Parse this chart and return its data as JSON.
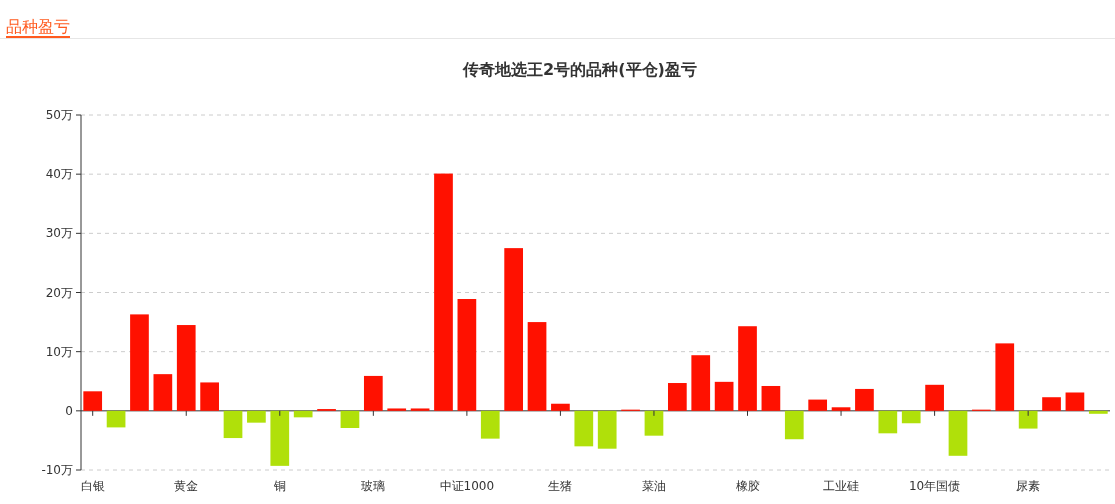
{
  "chart_data": {
    "type": "bar",
    "title": "传奇地选王2号的品种(平仓)盈亏",
    "annotations": [
      "品种盈亏"
    ],
    "categories": [
      "白银",
      null,
      null,
      null,
      "黄金",
      null,
      null,
      null,
      "铜",
      null,
      null,
      null,
      "玻璃",
      null,
      null,
      null,
      "中证1000",
      null,
      null,
      null,
      "生猪",
      null,
      null,
      null,
      "菜油",
      null,
      null,
      null,
      "橡胶",
      null,
      null,
      null,
      "工业硅",
      null,
      null,
      null,
      "10年国债",
      null,
      null,
      null,
      "尿素",
      null,
      null,
      null
    ],
    "values": [
      3.3,
      -2.8,
      16.3,
      6.2,
      14.5,
      4.8,
      -4.6,
      -2.0,
      -9.3,
      -1.1,
      0.3,
      -2.9,
      5.9,
      0.4,
      0.4,
      40.1,
      18.9,
      -4.7,
      27.5,
      15.0,
      1.2,
      -6.0,
      -6.4,
      0.2,
      -4.2,
      4.7,
      9.4,
      4.9,
      14.3,
      4.2,
      -4.8,
      1.9,
      0.6,
      3.7,
      -3.8,
      -2.1,
      4.4,
      -7.6,
      0.2,
      11.4,
      -3.0,
      2.3,
      3.1,
      -0.5
    ],
    "colors": [
      "#ff1100",
      "#b0e00a",
      "#ff1100",
      "#ff1100",
      "#ff1100",
      "#ff1100",
      "#b0e00a",
      "#b0e00a",
      "#b0e00a",
      "#b0e00a",
      "#ff1100",
      "#b0e00a",
      "#ff1100",
      "#ff1100",
      "#ff1100",
      "#ff1100",
      "#ff1100",
      "#b0e00a",
      "#ff1100",
      "#ff1100",
      "#ff1100",
      "#b0e00a",
      "#b0e00a",
      "#ff1100",
      "#b0e00a",
      "#ff1100",
      "#ff1100",
      "#ff1100",
      "#ff1100",
      "#ff1100",
      "#b0e00a",
      "#ff1100",
      "#ff1100",
      "#ff1100",
      "#b0e00a",
      "#b0e00a",
      "#ff1100",
      "#b0e00a",
      "#ff1100",
      "#ff1100",
      "#b0e00a",
      "#ff1100",
      "#ff1100",
      "#b0e00a"
    ],
    "ylim": [
      -10,
      50
    ],
    "yticks": [
      {
        "value": -10,
        "label": "-10万"
      },
      0,
      {
        "value": 10,
        "label": "10万"
      },
      {
        "value": 20,
        "label": "20万"
      },
      {
        "value": 30,
        "label": "30万"
      },
      {
        "value": 40,
        "label": "40万"
      },
      {
        "value": 50,
        "label": "50万"
      }
    ],
    "grid": "y"
  }
}
